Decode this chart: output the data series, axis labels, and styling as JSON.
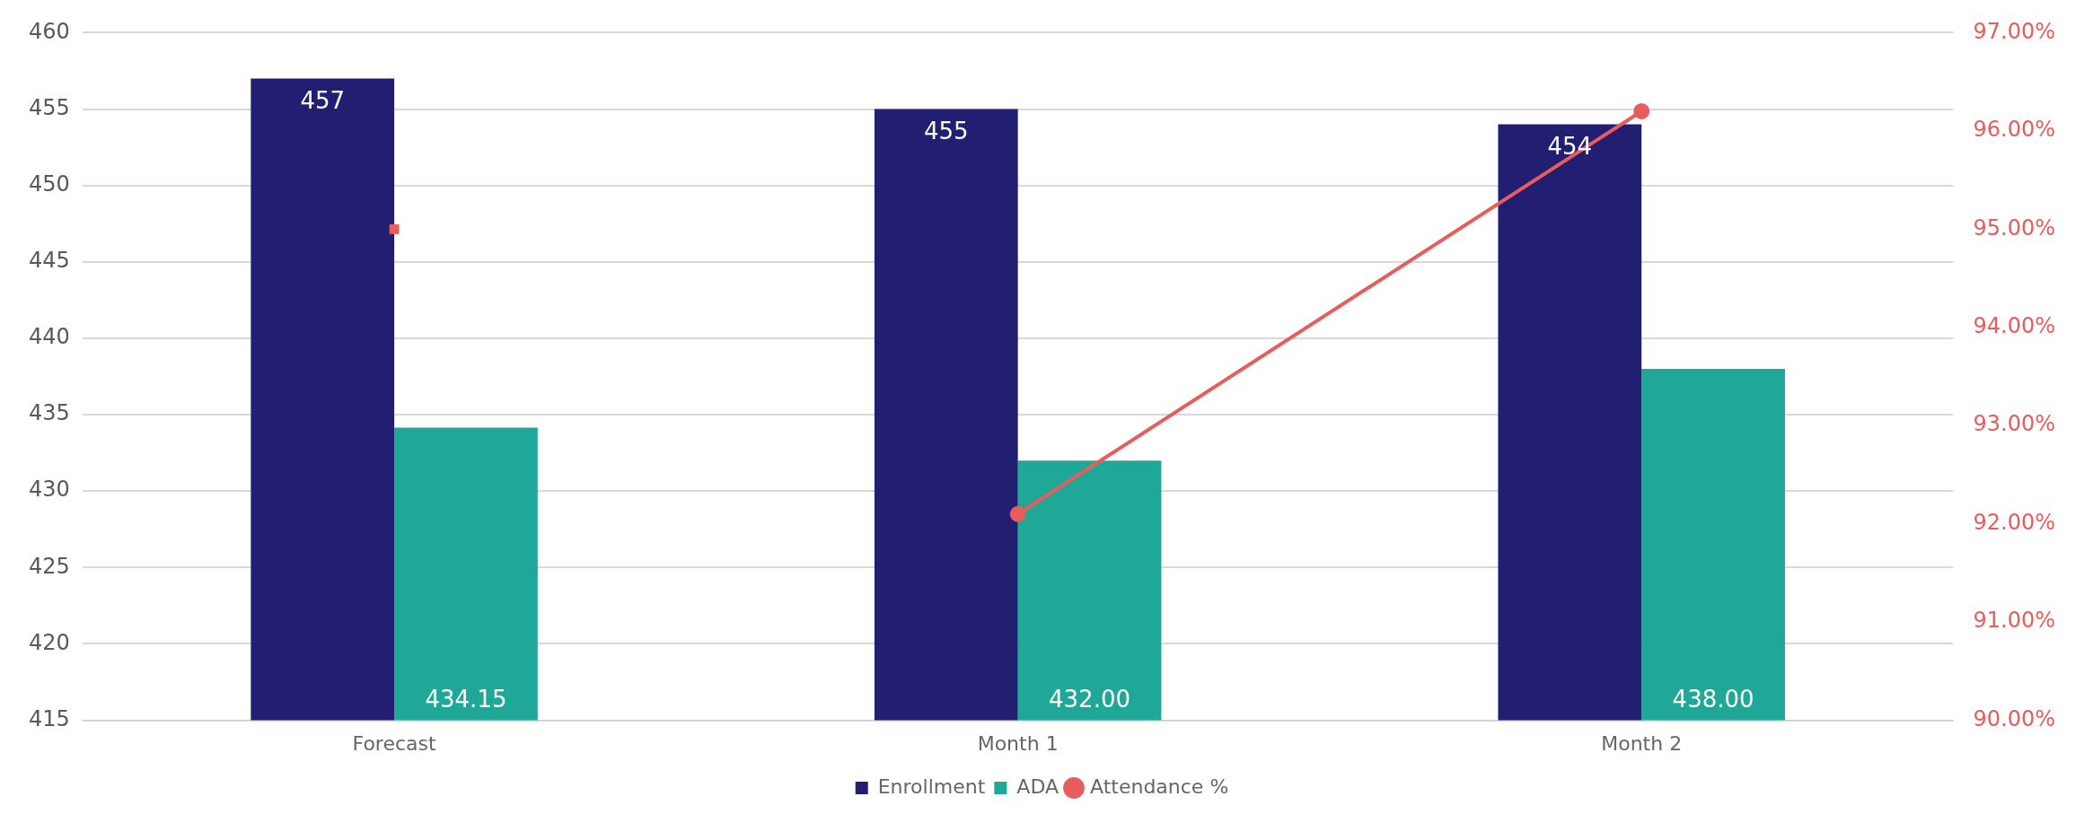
{
  "chart_data": {
    "type": "bar",
    "categories": [
      "Forecast",
      "Month 1",
      "Month 2"
    ],
    "series": [
      {
        "name": "Enrollment",
        "color": "#221f73",
        "values": [
          457,
          455,
          454
        ],
        "value_labels": [
          "457",
          "455",
          "454"
        ]
      },
      {
        "name": "ADA",
        "color": "#1fa898",
        "values": [
          434.15,
          432,
          438
        ],
        "value_labels": [
          "434.15",
          "432.00",
          "438.00"
        ]
      },
      {
        "name": "Attendance %",
        "type": "line",
        "axis": "y2",
        "color": "#e85c5c",
        "values": [
          null,
          92.1,
          96.2
        ],
        "marker": "circle"
      },
      {
        "type": "scatter",
        "axis": "y2",
        "color": "#e85c5c",
        "values": [
          95.0,
          null,
          null
        ],
        "marker": "square"
      }
    ],
    "ylim": [
      415,
      460
    ],
    "yticks": [
      415,
      420,
      425,
      430,
      435,
      440,
      445,
      450,
      455,
      460
    ],
    "y2lim": [
      90,
      97
    ],
    "y2ticks": [
      {
        "value": 90,
        "label": "90.00%"
      },
      {
        "value": 91,
        "label": "91.00%"
      },
      {
        "value": 92,
        "label": "92.00%"
      },
      {
        "value": 93,
        "label": "93.00%"
      },
      {
        "value": 94,
        "label": "94.00%"
      },
      {
        "value": 95,
        "label": "95.00%"
      },
      {
        "value": 96,
        "label": "96.00%"
      },
      {
        "value": 97,
        "label": "97.00%"
      }
    ],
    "grid": "y",
    "legend": "bottom"
  }
}
